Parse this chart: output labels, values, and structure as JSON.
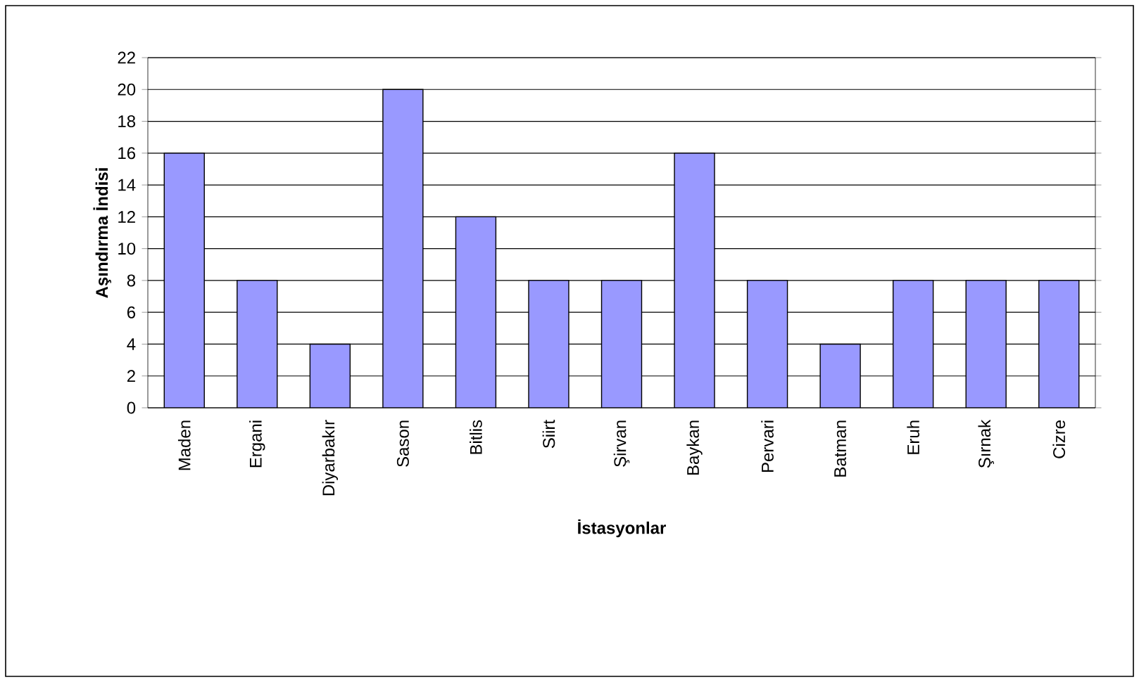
{
  "chart_data": {
    "type": "bar",
    "xlabel": "İstasyonlar",
    "ylabel": "Aşındırma İndisi",
    "categories": [
      "Maden",
      "Ergani",
      "Diyarbakır",
      "Sason",
      "Bitlis",
      "Siirt",
      "Şirvan",
      "Baykan",
      "Pervari",
      "Batman",
      "Eruh",
      "Şırnak",
      "Cizre"
    ],
    "values": [
      16,
      8,
      4,
      20,
      12,
      8,
      8,
      16,
      8,
      4,
      8,
      8,
      8
    ],
    "color": "#9999ff",
    "ylim": [
      0,
      22
    ],
    "yticks": [
      0,
      2,
      4,
      6,
      8,
      10,
      12,
      14,
      16,
      18,
      20,
      22
    ],
    "grid": "y"
  }
}
